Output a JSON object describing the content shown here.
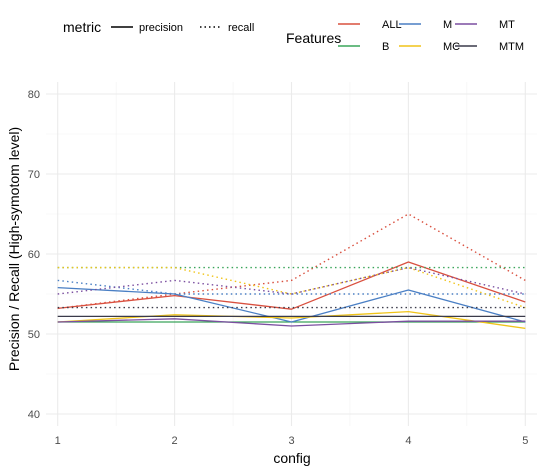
{
  "chart_data": {
    "type": "line",
    "xlabel": "config",
    "ylabel": "Precision / Recall (High-symotom level)",
    "x": [
      1,
      2,
      3,
      4,
      5
    ],
    "x_ticks": [
      "1",
      "2",
      "3",
      "4",
      "5"
    ],
    "xlim": [
      0.9,
      5.1
    ],
    "ylim": [
      38.5,
      81.5
    ],
    "y_ticks": [
      40,
      50,
      60,
      70,
      80
    ],
    "grid": true,
    "legend": {
      "metric": {
        "title": "metric",
        "entries": [
          {
            "label": "precision",
            "linetype": "solid"
          },
          {
            "label": "recall",
            "linetype": "dotted"
          }
        ]
      },
      "features": {
        "title": "Features",
        "entries": [
          {
            "label": "ALL",
            "color": "#d9503f"
          },
          {
            "label": "B",
            "color": "#3aa55a"
          },
          {
            "label": "M",
            "color": "#4a7fc4"
          },
          {
            "label": "MC",
            "color": "#f0c419"
          },
          {
            "label": "MT",
            "color": "#7b4fa0"
          },
          {
            "label": "MTM",
            "color": "#3a3a4a"
          }
        ]
      }
    },
    "series": [
      {
        "feature": "ALL",
        "metric": "precision",
        "values": [
          53.2,
          54.8,
          53.1,
          59.0,
          54.0
        ]
      },
      {
        "feature": "ALL",
        "metric": "recall",
        "values": [
          53.2,
          55.0,
          56.7,
          65.0,
          56.7
        ]
      },
      {
        "feature": "B",
        "metric": "precision",
        "values": [
          51.5,
          51.5,
          51.5,
          51.5,
          51.5
        ]
      },
      {
        "feature": "B",
        "metric": "recall",
        "values": [
          58.3,
          58.3,
          58.3,
          58.3,
          58.3
        ]
      },
      {
        "feature": "M",
        "metric": "precision",
        "values": [
          55.8,
          55.0,
          51.5,
          55.5,
          51.5
        ]
      },
      {
        "feature": "M",
        "metric": "recall",
        "values": [
          56.7,
          55.0,
          55.0,
          55.0,
          55.0
        ]
      },
      {
        "feature": "MC",
        "metric": "precision",
        "values": [
          51.5,
          52.4,
          52.0,
          52.8,
          50.7
        ]
      },
      {
        "feature": "MC",
        "metric": "recall",
        "values": [
          58.3,
          58.3,
          55.0,
          58.3,
          53.3
        ]
      },
      {
        "feature": "MT",
        "metric": "precision",
        "values": [
          51.5,
          51.9,
          51.0,
          51.6,
          51.6
        ]
      },
      {
        "feature": "MT",
        "metric": "recall",
        "values": [
          55.0,
          56.7,
          55.0,
          58.3,
          55.0
        ]
      },
      {
        "feature": "MTM",
        "metric": "precision",
        "values": [
          52.2,
          52.2,
          52.2,
          52.2,
          52.2
        ]
      },
      {
        "feature": "MTM",
        "metric": "recall",
        "values": [
          53.3,
          53.3,
          53.3,
          53.3,
          53.3
        ]
      }
    ]
  }
}
